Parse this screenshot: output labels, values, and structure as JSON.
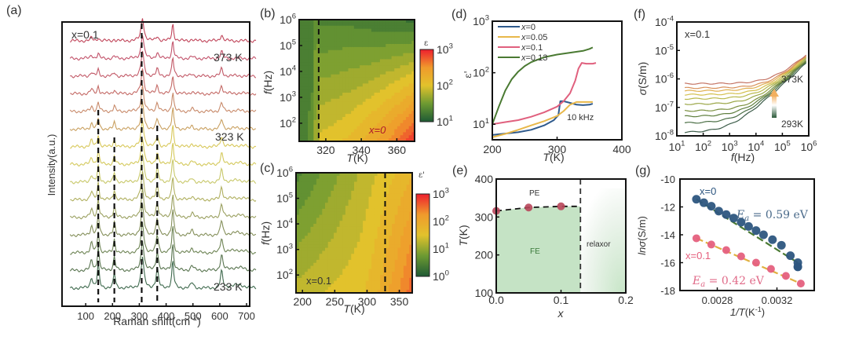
{
  "chart_data": [
    {
      "panel": "(a)",
      "type": "line",
      "title": "",
      "annotation": "x=0.1",
      "xlabel": "Raman shift(cm-1)",
      "ylabel": "Intensity(a.u.)",
      "xlim": [
        0,
        700
      ],
      "xticks": [
        "100",
        "200",
        "300",
        "400",
        "500",
        "600",
        "700"
      ],
      "temperature_labels": [
        "373 K",
        "323 K",
        "233 K"
      ],
      "n_spectra": 15,
      "peaks_cm1": [
        75,
        100,
        160,
        265,
        320,
        378,
        450,
        560
      ],
      "dashed_lines_cm1": [
        100,
        160,
        262,
        320
      ],
      "colors_top_to_bottom": [
        "#c0455a",
        "#c2526a",
        "#c25a68",
        "#c46a66",
        "#c88a6a",
        "#c9a060",
        "#d8c85a",
        "#d4c95c",
        "#c8c86a",
        "#b0b060",
        "#9aa060",
        "#848f5a",
        "#6e8455",
        "#58744f",
        "#3f6a4e"
      ]
    },
    {
      "panel": "(b)",
      "type": "heatmap",
      "annotation": "x=0",
      "xlabel": "T(K)",
      "ylabel": "f(Hz)",
      "xlim": [
        305,
        370
      ],
      "xticks": [
        "320",
        "340",
        "360"
      ],
      "yticks": [
        "10^2",
        "10^3",
        "10^4",
        "10^5",
        "10^6"
      ],
      "ylim_log10": [
        1.3,
        6
      ],
      "dashed_line_T": 316,
      "colorbar": {
        "label": "ε",
        "ticks": [
          "10^1",
          "10^2",
          "10^3"
        ],
        "range_log10": [
          1,
          3
        ]
      }
    },
    {
      "panel": "(c)",
      "type": "heatmap",
      "annotation": "x=0.1",
      "xlabel": "T(K)",
      "ylabel": "f(Hz)",
      "xlim": [
        190,
        370
      ],
      "xticks": [
        "200",
        "250",
        "300",
        "350"
      ],
      "yticks": [
        "10^2",
        "10^3",
        "10^4",
        "10^5",
        "10^6"
      ],
      "ylim_log10": [
        1.3,
        6
      ],
      "dashed_line_T": 328,
      "colorbar": {
        "label": "ε'",
        "ticks": [
          "10^0",
          "10^1",
          "10^2",
          "10^3"
        ],
        "range_log10": [
          0,
          3
        ]
      }
    },
    {
      "panel": "(d)",
      "type": "line",
      "xlabel": "T(K)",
      "ylabel": "ε'",
      "xlim": [
        200,
        400
      ],
      "ylim": [
        5,
        1000
      ],
      "yscale": "log",
      "xticks": [
        "200",
        "300",
        "400"
      ],
      "yticks": [
        "10^1",
        "10^2",
        "10^3"
      ],
      "annotation": "10 kHz",
      "series": [
        {
          "name": "x=0",
          "color": "#2f5a8c",
          "x": [
            200,
            220,
            240,
            260,
            280,
            295,
            302,
            305,
            310,
            320,
            330,
            340,
            350,
            355
          ],
          "y": [
            6.2,
            6.6,
            7,
            7.8,
            9.5,
            12,
            15,
            28,
            28,
            26,
            24,
            23.5,
            24,
            25
          ]
        },
        {
          "name": "x=0.05",
          "color": "#e8b84a",
          "x": [
            200,
            220,
            240,
            260,
            280,
            300,
            310,
            320,
            330,
            340,
            350,
            355
          ],
          "y": [
            5.6,
            6.5,
            7.8,
            9.5,
            11.5,
            14.5,
            18,
            24,
            27,
            27,
            27,
            27
          ]
        },
        {
          "name": "x=0.1",
          "color": "#e0607e",
          "x": [
            200,
            220,
            240,
            260,
            280,
            300,
            310,
            320,
            328,
            333,
            338,
            345,
            355,
            360
          ],
          "y": [
            10,
            11,
            12,
            14,
            17,
            22,
            28,
            40,
            70,
            120,
            155,
            150,
            150,
            155
          ]
        },
        {
          "name": "x=0.13",
          "color": "#4a7a32",
          "x": [
            200,
            210,
            220,
            230,
            240,
            250,
            260,
            270,
            280,
            300,
            320,
            340,
            350,
            355
          ],
          "y": [
            10,
            22,
            45,
            75,
            105,
            135,
            160,
            180,
            200,
            225,
            245,
            265,
            290,
            310
          ]
        }
      ]
    },
    {
      "panel": "(e)",
      "type": "scatter",
      "xlabel": "x",
      "ylabel": "T(K)",
      "xlim": [
        0,
        0.2
      ],
      "ylim": [
        100,
        400
      ],
      "xticks": [
        "0.0",
        "0.1",
        "0.2"
      ],
      "yticks": [
        "100",
        "200",
        "300",
        "400"
      ],
      "regions": [
        "PE",
        "FE",
        "relaxor"
      ],
      "boundary_x": 0.13,
      "points": [
        {
          "x": 0.0,
          "y": 316
        },
        {
          "x": 0.05,
          "y": 325
        },
        {
          "x": 0.1,
          "y": 328
        }
      ],
      "point_color": "#b8465a",
      "fe_color": "#bfe0bf"
    },
    {
      "panel": "(f)",
      "type": "line",
      "annotation": "x=0.1",
      "xlabel": "f(Hz)",
      "ylabel": "σ(S/m)",
      "xscale": "log",
      "yscale": "log",
      "xlim": [
        10,
        1000000
      ],
      "ylim": [
        1e-08,
        0.0001
      ],
      "xticks": [
        "10^1",
        "10^2",
        "10^3",
        "10^4",
        "10^5",
        "10^6"
      ],
      "yticks": [
        "10^-8",
        "10^-7",
        "10^-6",
        "10^-5",
        "10^-4"
      ],
      "temperature_range": [
        "293K",
        "373K"
      ],
      "series_dc_sigma": [
        1.3e-08,
        2.8e-08,
        4.8e-08,
        7.5e-08,
        1.3e-07,
        2e-07,
        2.8e-07,
        3.8e-07,
        4.8e-07,
        6.8e-07
      ],
      "series_hf_sigma": [
        3.2e-05,
        4e-05,
        4.5e-05,
        5e-05,
        5.5e-05,
        6e-05,
        6.3e-05,
        6.5e-05,
        6.8e-05,
        7e-05
      ],
      "colors": [
        "#3d5d4a",
        "#4a6e44",
        "#5f7f3e",
        "#7b9040",
        "#9aa646",
        "#b8b84a",
        "#d4c04e",
        "#e0b050",
        "#d8905a",
        "#c47464"
      ]
    },
    {
      "panel": "(g)",
      "type": "scatter",
      "xlabel": "1/T(K-1)",
      "ylabel": "lnσ(S/m)",
      "xlim": [
        0.00255,
        0.00345
      ],
      "ylim": [
        -18,
        -10
      ],
      "xticks": [
        "0.0028",
        "0.0032"
      ],
      "xtick_values": [
        0.0028,
        0.0032
      ],
      "yticks": [
        "-10",
        "-12",
        "-14",
        "-16",
        "-18"
      ],
      "series": [
        {
          "name": "x=0",
          "label": "E_a = 0.59 eV",
          "color": "#2d5680",
          "fit_color": "#4a7a32",
          "x": [
            0.00266,
            0.00271,
            0.00276,
            0.00281,
            0.00286,
            0.00291,
            0.00296,
            0.00301,
            0.00306,
            0.00311,
            0.00317,
            0.00323,
            0.00329,
            0.00334
          ],
          "y": [
            -11.45,
            -11.7,
            -11.95,
            -12.3,
            -12.55,
            -12.8,
            -13.1,
            -13.4,
            -13.7,
            -14,
            -14.35,
            -14.75,
            -15.5,
            -16.0
          ]
        },
        {
          "name": "x=0.1",
          "label": "E_a = 0.42 eV",
          "color": "#e5607e",
          "fit_color": "#e0b040",
          "x": [
            0.00266,
            0.00276,
            0.00286,
            0.00296,
            0.00306,
            0.00316,
            0.00326,
            0.00336
          ],
          "y": [
            -14.25,
            -14.7,
            -15.1,
            -15.55,
            -16.0,
            -16.45,
            -16.95,
            -17.5
          ]
        }
      ],
      "extra_point_x0": {
        "x": 0.00334,
        "y": -16.3
      }
    }
  ],
  "panel_labels": [
    "(a)",
    "(b)",
    "(c)",
    "(d)",
    "(e)",
    "(f)",
    "(g)"
  ]
}
